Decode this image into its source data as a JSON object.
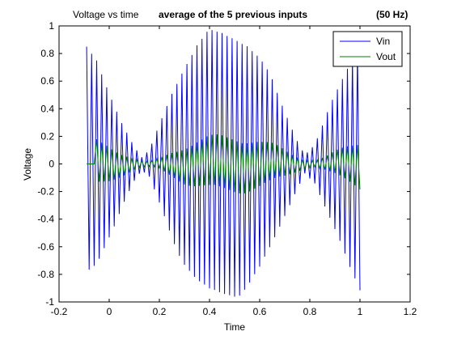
{
  "chart_data": {
    "type": "line",
    "title_parts": [
      "Voltage vs time",
      "average of the 5 previous inputs",
      "(50 Hz)"
    ],
    "xlabel": "Time",
    "ylabel": "Voltage",
    "xlim": [
      -0.2,
      1.2
    ],
    "ylim": [
      -1,
      1
    ],
    "xticks": [
      -0.2,
      0,
      0.2,
      0.4,
      0.6,
      0.8,
      1,
      1.2
    ],
    "xtick_labels": [
      "-0.2",
      "0",
      "0.2",
      "0.4",
      "0.6",
      "0.8",
      "1",
      "1.2"
    ],
    "yticks": [
      -1,
      -0.8,
      -0.6,
      -0.4,
      -0.2,
      0,
      0.2,
      0.4,
      0.6,
      0.8,
      1
    ],
    "ytick_labels": [
      "-1",
      "-0.8",
      "-0.6",
      "-0.4",
      "-0.2",
      "0",
      "0.2",
      "0.4",
      "0.6",
      "0.8",
      "1"
    ],
    "x_start": -0.09,
    "x_end": 1.0,
    "sample_step": 0.01,
    "signal_frequency_hz": 50,
    "envelope_points": [
      [
        -0.09,
        0.85
      ],
      [
        -0.05,
        0.78
      ],
      [
        0.0,
        0.55
      ],
      [
        0.05,
        0.32
      ],
      [
        0.1,
        0.13
      ],
      [
        0.13,
        0.05
      ],
      [
        0.16,
        0.1
      ],
      [
        0.2,
        0.3
      ],
      [
        0.25,
        0.55
      ],
      [
        0.3,
        0.75
      ],
      [
        0.35,
        0.9
      ],
      [
        0.4,
        0.98
      ],
      [
        0.45,
        1.0
      ],
      [
        0.5,
        0.98
      ],
      [
        0.55,
        0.92
      ],
      [
        0.6,
        0.8
      ],
      [
        0.65,
        0.62
      ],
      [
        0.7,
        0.4
      ],
      [
        0.75,
        0.18
      ],
      [
        0.78,
        0.07
      ],
      [
        0.82,
        0.15
      ],
      [
        0.87,
        0.38
      ],
      [
        0.92,
        0.6
      ],
      [
        0.96,
        0.78
      ],
      [
        1.0,
        0.92
      ]
    ],
    "grid": false,
    "legend_position": "top-right",
    "series": [
      {
        "name": "Vin",
        "color": "#0000ff"
      },
      {
        "name": "Vout",
        "color": "#008000",
        "moving_average_window": 5
      }
    ]
  }
}
